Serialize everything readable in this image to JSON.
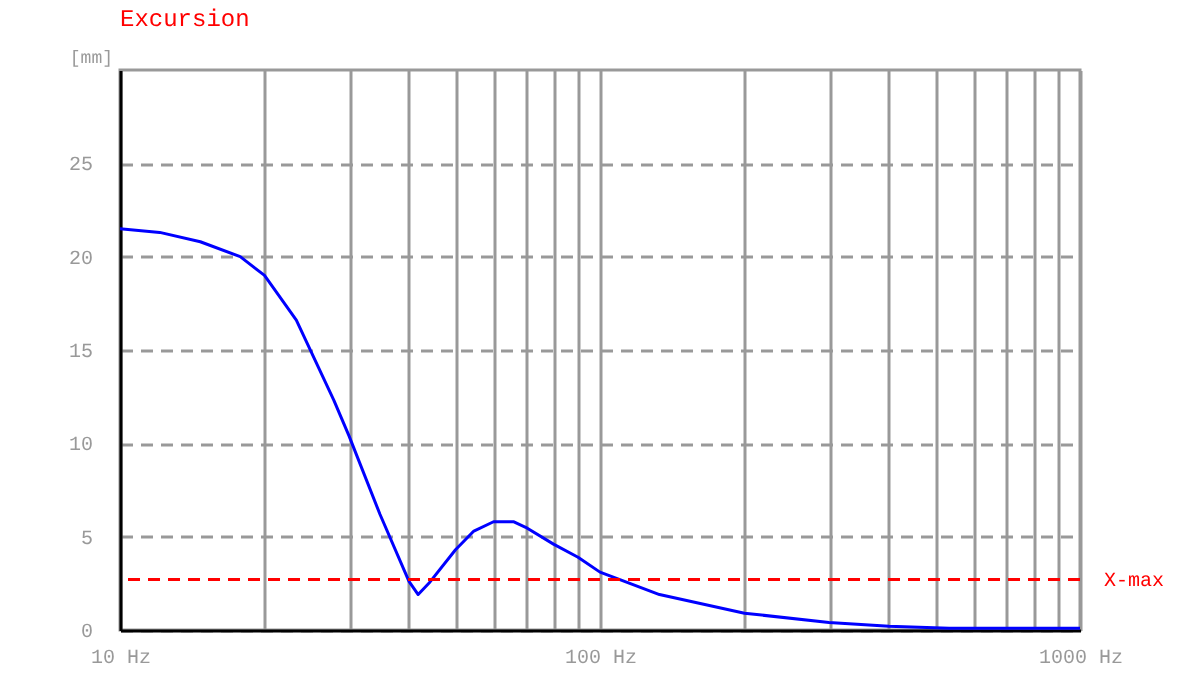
{
  "chart_data": {
    "type": "line",
    "title": "Excursion",
    "ylabel": "[mm]",
    "x": [
      10,
      12.1,
      14.7,
      17.8,
      20,
      23.3,
      27.9,
      30,
      34.8,
      40,
      41.8,
      44,
      50,
      54.6,
      60,
      66,
      70,
      80,
      90,
      100,
      110,
      133,
      200,
      300,
      400,
      534,
      1000
    ],
    "series": [
      {
        "color": "#0000ff",
        "values": [
          21.5,
          21.3,
          20.8,
          20.0,
          19.0,
          16.6,
          12.3,
          10.4,
          6.2,
          2.6,
          1.9,
          2.5,
          4.3,
          5.3,
          5.8,
          5.8,
          5.5,
          4.6,
          3.9,
          3.1,
          2.7,
          1.9,
          0.9,
          0.4,
          0.2,
          0.1,
          0.1
        ]
      }
    ],
    "log": "x",
    "xlim": [
      10,
      1000
    ],
    "ylim": [
      0,
      30
    ],
    "xticks": [
      {
        "value": 10,
        "label": "10 Hz"
      },
      {
        "value": 20,
        "label": null
      },
      {
        "value": 30,
        "label": null
      },
      {
        "value": 40,
        "label": null
      },
      {
        "value": 50,
        "label": null
      },
      {
        "value": 60,
        "label": null
      },
      {
        "value": 70,
        "label": null
      },
      {
        "value": 80,
        "label": null
      },
      {
        "value": 90,
        "label": null
      },
      {
        "value": 100,
        "label": "100 Hz"
      },
      {
        "value": 200,
        "label": null
      },
      {
        "value": 300,
        "label": null
      },
      {
        "value": 400,
        "label": null
      },
      {
        "value": 500,
        "label": null
      },
      {
        "value": 600,
        "label": null
      },
      {
        "value": 700,
        "label": null
      },
      {
        "value": 800,
        "label": null
      },
      {
        "value": 900,
        "label": null
      },
      {
        "value": 1000,
        "label": "1000 Hz"
      }
    ],
    "yticks": [
      0,
      5,
      10,
      15,
      20,
      25
    ],
    "grid": true,
    "ref_lines": [
      {
        "axis": "y",
        "value": 2.7,
        "label": "X-max",
        "color": "#ff0000",
        "line_style": "dashed"
      }
    ]
  }
}
